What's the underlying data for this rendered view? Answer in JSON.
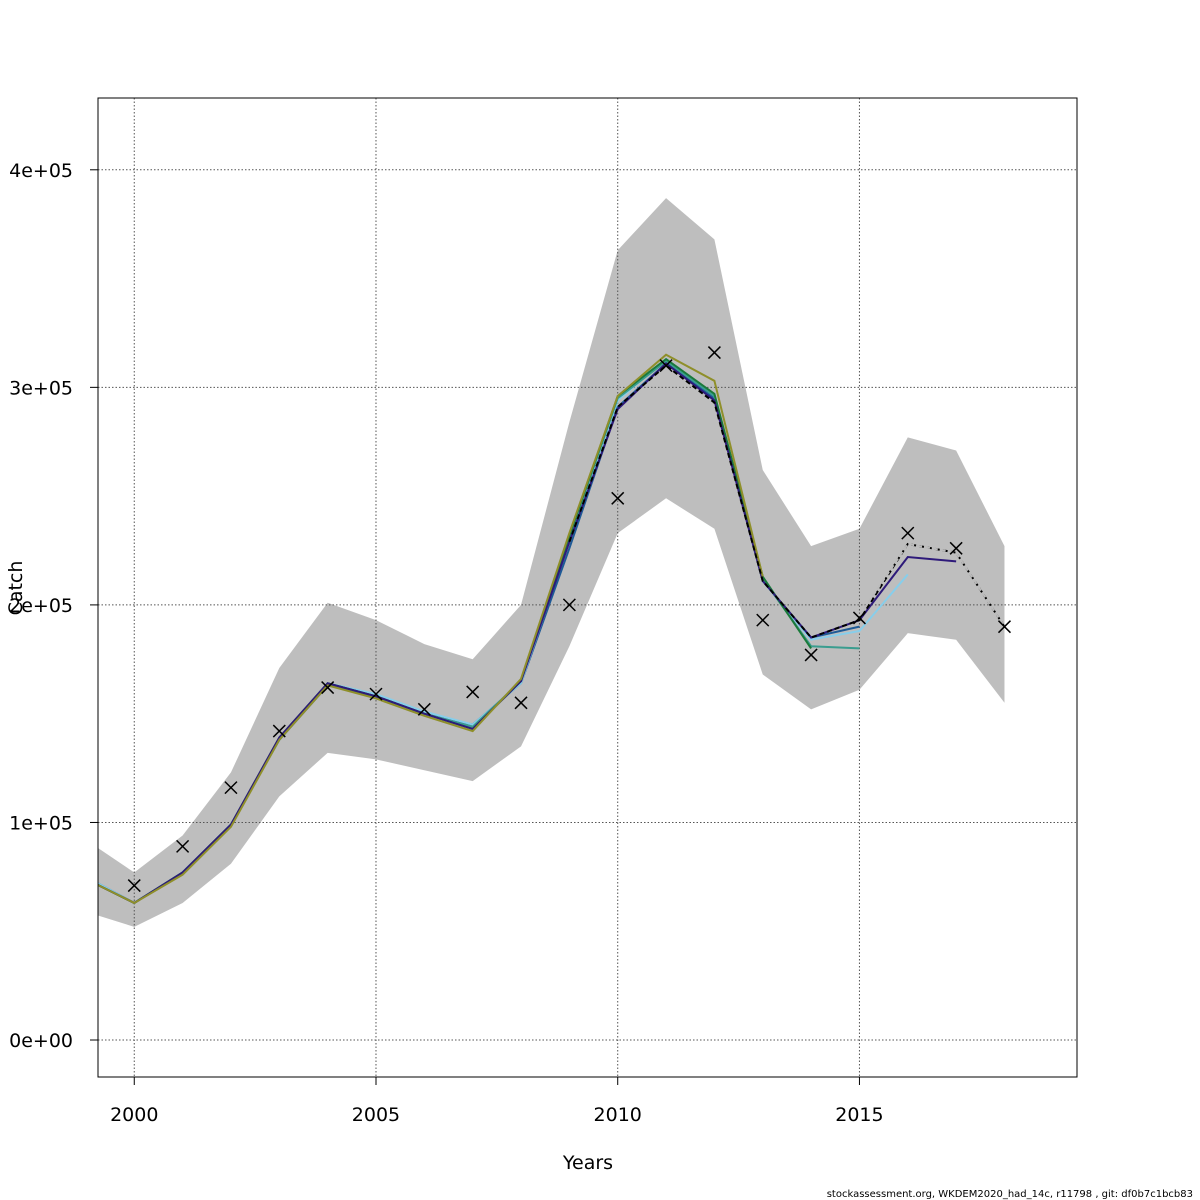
{
  "chart_data": {
    "type": "line",
    "title": "",
    "xlabel": "Years",
    "ylabel": "Catch",
    "xlim": [
      1999.25,
      2019.5
    ],
    "ylim": [
      -17000,
      433000
    ],
    "x_ticks": [
      2000,
      2005,
      2010,
      2015
    ],
    "x_tick_labels": [
      "2000",
      "2005",
      "2010",
      "2015"
    ],
    "y_ticks": [
      0,
      100000,
      200000,
      300000,
      400000
    ],
    "y_tick_labels": [
      "0e+00",
      "1e+05",
      "2e+05",
      "3e+05",
      "4e+05"
    ],
    "grid": true,
    "legend": null,
    "confidence_band": {
      "color": "#bebebe",
      "x": [
        1999,
        2000,
        2001,
        2002,
        2003,
        2004,
        2005,
        2006,
        2007,
        2008,
        2009,
        2010,
        2011,
        2012,
        2013,
        2014,
        2015,
        2016,
        2017,
        2018
      ],
      "upper": [
        92000,
        77000,
        94000,
        123000,
        171000,
        201000,
        193000,
        182000,
        175000,
        200000,
        284000,
        363000,
        387000,
        368000,
        262000,
        227000,
        235000,
        277000,
        271000,
        227000
      ],
      "lower": [
        59000,
        52000,
        63000,
        81000,
        112000,
        132000,
        129000,
        124000,
        119000,
        135000,
        181000,
        233000,
        249000,
        235000,
        168000,
        152000,
        161000,
        187000,
        184000,
        155000
      ]
    },
    "observations": {
      "marker": "x",
      "color": "#000000",
      "x": [
        2000,
        2001,
        2002,
        2003,
        2004,
        2005,
        2006,
        2007,
        2008,
        2009,
        2010,
        2011,
        2012,
        2013,
        2014,
        2015,
        2016,
        2017,
        2018
      ],
      "values": [
        71000,
        89000,
        116000,
        142000,
        162000,
        159000,
        152000,
        160000,
        155000,
        200000,
        249000,
        310000,
        316000,
        193000,
        177000,
        194000,
        233000,
        226000,
        190000
      ]
    },
    "series": [
      {
        "color": "#1e5a96",
        "x": [
          1999,
          2000,
          2001,
          2002,
          2003,
          2004,
          2005,
          2006,
          2007,
          2008,
          2009,
          2010,
          2011,
          2012,
          2013,
          2014,
          2015
        ],
        "values": [
          75000,
          63000,
          77000,
          99000,
          138000,
          163000,
          158000,
          150000,
          145000,
          164000,
          226000,
          291000,
          311000,
          295000,
          211000,
          185000,
          190000
        ]
      },
      {
        "color": "#87ceeb",
        "x": [
          1999,
          2000,
          2001,
          2002,
          2003,
          2004,
          2005,
          2006,
          2007,
          2008,
          2009,
          2010,
          2011,
          2012,
          2013,
          2014,
          2015,
          2016
        ],
        "values": [
          75000,
          63000,
          77000,
          99000,
          138000,
          164000,
          159000,
          151000,
          145000,
          164000,
          230000,
          294000,
          313000,
          296000,
          211000,
          184000,
          188000,
          214000
        ]
      },
      {
        "color": "#3a9d8f",
        "x": [
          1999,
          2000,
          2001,
          2002,
          2003,
          2004,
          2005,
          2006,
          2007,
          2008,
          2009,
          2010,
          2011,
          2012,
          2013,
          2014,
          2015
        ],
        "values": [
          74000,
          63000,
          77000,
          99000,
          138000,
          164000,
          158000,
          150000,
          144000,
          165000,
          231000,
          295000,
          312000,
          296000,
          212000,
          181000,
          180000
        ]
      },
      {
        "color": "#1a7a3a",
        "x": [
          1999,
          2000,
          2001,
          2002,
          2003,
          2004,
          2005,
          2006,
          2007,
          2008,
          2009,
          2010,
          2011,
          2012,
          2013,
          2014
        ],
        "values": [
          74000,
          63000,
          77000,
          99000,
          139000,
          164000,
          158000,
          150000,
          143000,
          165000,
          232000,
          296000,
          313000,
          297000,
          213000,
          180000
        ]
      },
      {
        "color": "#2e1a7a",
        "x": [
          1999,
          2000,
          2001,
          2002,
          2003,
          2004,
          2005,
          2006,
          2007,
          2008,
          2009,
          2010,
          2011,
          2012,
          2013,
          2014,
          2015,
          2016,
          2017
        ],
        "values": [
          74000,
          63000,
          77000,
          99000,
          139000,
          164000,
          158000,
          150000,
          143000,
          165000,
          229000,
          290000,
          311000,
          294000,
          211000,
          185000,
          193000,
          222000,
          220000
        ]
      },
      {
        "color": "#8f8f2a",
        "x": [
          1999,
          2000,
          2001,
          2002,
          2003,
          2004,
          2005,
          2006,
          2007,
          2008,
          2009,
          2010,
          2011,
          2012,
          2013
        ],
        "values": [
          74000,
          63000,
          76000,
          98000,
          138000,
          163000,
          157000,
          149000,
          142000,
          166000,
          233000,
          296000,
          315000,
          303000,
          213000
        ]
      },
      {
        "color": "#000000",
        "dashed": true,
        "x": [
          2009,
          2010,
          2011,
          2012,
          2013,
          2014,
          2015,
          2016,
          2017,
          2018
        ],
        "values": [
          229000,
          291000,
          310000,
          293000,
          211000,
          185000,
          193000,
          228000,
          224000,
          190000
        ]
      },
      {
        "color": "#bbbbbb",
        "dashed": true,
        "x": [
          2015,
          2016,
          2017,
          2018
        ],
        "values": [
          195000,
          228000,
          224000,
          190000
        ]
      }
    ]
  },
  "footer": {
    "text": "stockassessment.org, WKDEM2020_had_14c, r11798 , git: df0b7c1bcb83"
  }
}
